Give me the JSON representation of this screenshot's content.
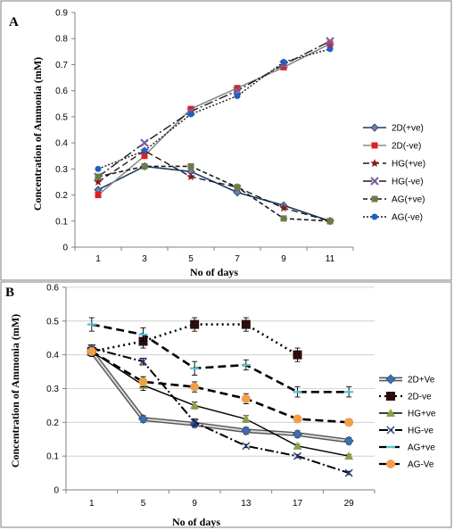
{
  "chart_data": [
    {
      "type": "line",
      "panel_label": "A",
      "xlabel": "No of days",
      "ylabel": "Concentration of Ammonia (mM)",
      "categories": [
        "1",
        "3",
        "5",
        "7",
        "9",
        "11"
      ],
      "ylim": [
        0,
        0.9
      ],
      "yticks": [
        "0",
        "0.1",
        "0.2",
        "0.3",
        "0.4",
        "0.5",
        "0.6",
        "0.7",
        "0.8",
        "0.9"
      ],
      "grid": false,
      "legend_position": "right",
      "series": [
        {
          "name": "2D(+ve)",
          "values": [
            0.22,
            0.31,
            0.29,
            0.21,
            0.16,
            0.1
          ],
          "color": "#1f3a6b",
          "dash": "",
          "width": 1.6,
          "marker": "diamond"
        },
        {
          "name": "2D(-ve)",
          "values": [
            0.2,
            0.35,
            0.53,
            0.61,
            0.69,
            0.78
          ],
          "color": "#8a8a8a",
          "dash": "",
          "width": 1.6,
          "marker": "square-red"
        },
        {
          "name": "HG(+ve)",
          "values": [
            0.25,
            0.37,
            0.27,
            0.23,
            0.15,
            0.1
          ],
          "color": "#1a1a1a",
          "dash": "7,4",
          "width": 1.4,
          "marker": "star"
        },
        {
          "name": "HG(-ve)",
          "values": [
            0.27,
            0.4,
            0.52,
            0.6,
            0.7,
            0.79
          ],
          "color": "#1a1a1a",
          "dash": "10,3,2,3",
          "width": 1.4,
          "marker": "x-purple"
        },
        {
          "name": "AG(+ve)",
          "values": [
            0.27,
            0.31,
            0.31,
            0.23,
            0.11,
            0.1
          ],
          "color": "#1a1a1a",
          "dash": "5,3",
          "width": 1.6,
          "marker": "square-olive"
        },
        {
          "name": "AG(-ve)",
          "values": [
            0.3,
            0.37,
            0.51,
            0.58,
            0.71,
            0.76
          ],
          "color": "#1a1a1a",
          "dash": "2,2",
          "width": 1.4,
          "marker": "circle-blue"
        }
      ]
    },
    {
      "type": "line",
      "panel_label": "B",
      "xlabel": "No of days",
      "ylabel": "Concentration of Ammonia (mM)",
      "categories": [
        "1",
        "5",
        "9",
        "13",
        "17",
        "29"
      ],
      "ylim": [
        0,
        0.6
      ],
      "yticks": [
        "0",
        "0.1",
        "0.2",
        "0.3",
        "0.4",
        "0.5",
        "0.6"
      ],
      "grid": true,
      "legend_position": "right",
      "series": [
        {
          "name": "2D+Ve",
          "values": [
            0.41,
            0.21,
            0.195,
            0.175,
            0.165,
            0.145
          ],
          "error": [
            0.01,
            0.01,
            0.01,
            0.01,
            0.01,
            0.01
          ],
          "color": "#555555",
          "dash": "",
          "width": 3.2,
          "marker": "diamond-blue",
          "hollow": true
        },
        {
          "name": "2D-ve",
          "values": [
            0.41,
            0.44,
            0.49,
            0.49,
            0.4,
            null
          ],
          "error": [
            0.015,
            0.02,
            0.02,
            0.02,
            0.02,
            0
          ],
          "color": "#000000",
          "dash": "2,4",
          "width": 2.6,
          "marker": "square-black"
        },
        {
          "name": "HG+ve",
          "values": [
            0.41,
            0.31,
            0.25,
            0.21,
            0.13,
            0.1
          ],
          "error": [
            0.01,
            0.015,
            0.01,
            0.01,
            0.005,
            0.005
          ],
          "color": "#000000",
          "dash": "",
          "width": 1.4,
          "marker": "triangle-olive"
        },
        {
          "name": "HG-ve",
          "values": [
            0.42,
            0.38,
            0.2,
            0.13,
            0.1,
            0.05
          ],
          "error": [
            0.01,
            0.01,
            0.01,
            0.005,
            0.005,
            0.005
          ],
          "color": "#000000",
          "dash": "10,3,2,3",
          "width": 2.0,
          "marker": "x-navy"
        },
        {
          "name": "AG+ve",
          "values": [
            0.49,
            0.46,
            0.36,
            0.37,
            0.29,
            0.29
          ],
          "error": [
            0.02,
            0.02,
            0.02,
            0.015,
            0.015,
            0.015
          ],
          "color": "#000000",
          "dash": "9,5",
          "width": 2.6,
          "marker": "bar-cyan"
        },
        {
          "name": "AG-Ve",
          "values": [
            0.41,
            0.32,
            0.305,
            0.27,
            0.21,
            0.2
          ],
          "error": [
            0.01,
            0.015,
            0.015,
            0.015,
            0.01,
            0.01
          ],
          "color": "#000000",
          "dash": "9,5",
          "width": 2.6,
          "marker": "circle-orange"
        }
      ]
    }
  ]
}
